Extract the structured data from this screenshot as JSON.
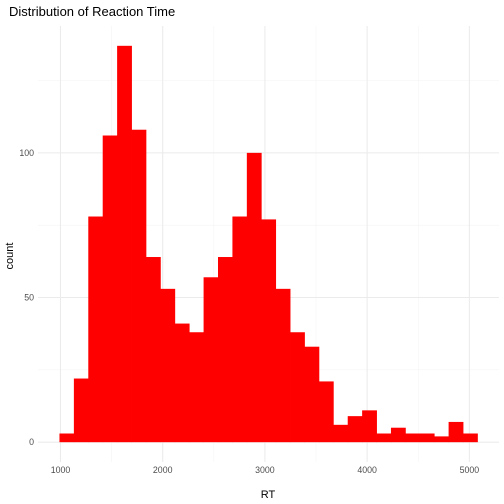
{
  "chart_data": {
    "type": "bar",
    "title": "Distribution of Reaction Time",
    "xlabel": "RT",
    "ylabel": "count",
    "bin_width": 141,
    "bins": [
      {
        "x0": 990,
        "count": 3
      },
      {
        "x0": 1131,
        "count": 22
      },
      {
        "x0": 1272,
        "count": 78
      },
      {
        "x0": 1413,
        "count": 106
      },
      {
        "x0": 1554,
        "count": 137
      },
      {
        "x0": 1695,
        "count": 108
      },
      {
        "x0": 1836,
        "count": 64
      },
      {
        "x0": 1977,
        "count": 53
      },
      {
        "x0": 2118,
        "count": 41
      },
      {
        "x0": 2259,
        "count": 38
      },
      {
        "x0": 2400,
        "count": 57
      },
      {
        "x0": 2541,
        "count": 64
      },
      {
        "x0": 2682,
        "count": 78
      },
      {
        "x0": 2823,
        "count": 100
      },
      {
        "x0": 2964,
        "count": 77
      },
      {
        "x0": 3105,
        "count": 53
      },
      {
        "x0": 3246,
        "count": 38
      },
      {
        "x0": 3387,
        "count": 33
      },
      {
        "x0": 3528,
        "count": 21
      },
      {
        "x0": 3669,
        "count": 6
      },
      {
        "x0": 3810,
        "count": 9
      },
      {
        "x0": 3951,
        "count": 11
      },
      {
        "x0": 4092,
        "count": 3
      },
      {
        "x0": 4233,
        "count": 5
      },
      {
        "x0": 4374,
        "count": 3
      },
      {
        "x0": 4515,
        "count": 3
      },
      {
        "x0": 4656,
        "count": 2
      },
      {
        "x0": 4797,
        "count": 7
      },
      {
        "x0": 4938,
        "count": 3
      }
    ],
    "x_ticks": [
      1000,
      2000,
      3000,
      4000,
      5000
    ],
    "x_tick_labels": [
      "1000",
      "2000",
      "3000",
      "4000",
      "5000"
    ],
    "y_ticks": [
      0,
      50,
      100
    ],
    "y_tick_labels": [
      "0",
      "50",
      "100"
    ],
    "xlim": [
      780,
      5290
    ],
    "ylim": [
      -6.85,
      143.85
    ],
    "grid": true,
    "legend": "none",
    "bar_color": "#ff0000",
    "theme": "minimal"
  }
}
